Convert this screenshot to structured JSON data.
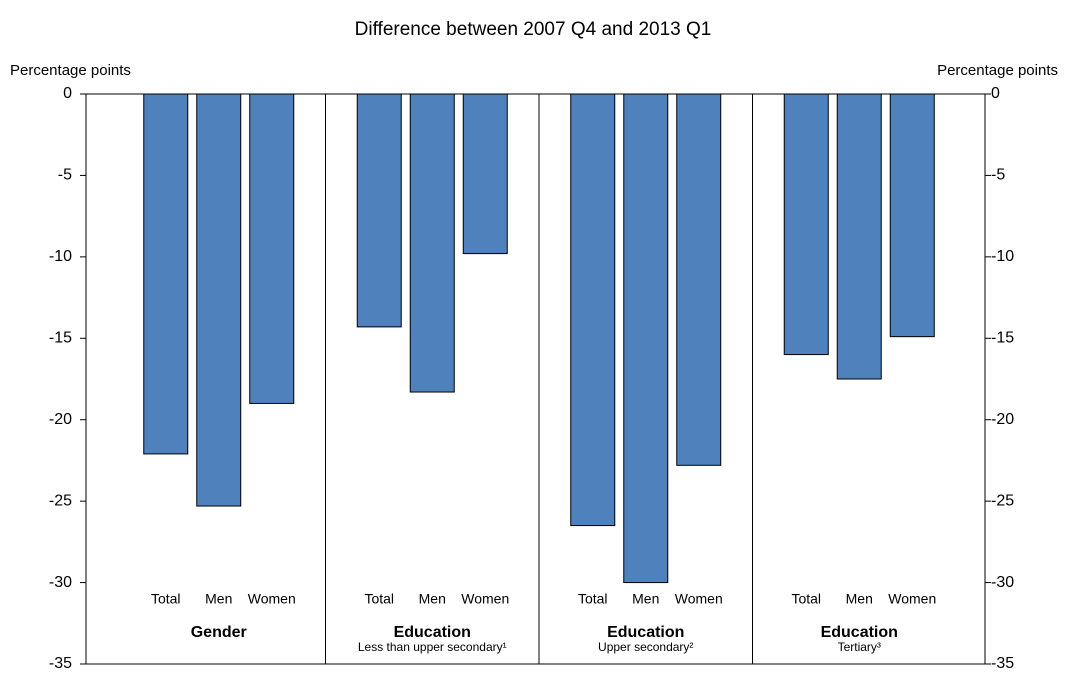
{
  "chart_data": {
    "type": "bar",
    "title": "Difference between 2007 Q4 and 2013 Q1",
    "y_label": "Percentage points",
    "y2_label": "Percentage points",
    "color": "#4f81bd",
    "groups": [
      {
        "label": "Gender",
        "categories": [
          "Total",
          "Men",
          "Women"
        ],
        "values": [
          -22.1,
          -25.3,
          -19.0
        ]
      },
      {
        "label": "Education",
        "sublabel": "Less than upper secondary¹",
        "categories": [
          "Total",
          "Men",
          "Women"
        ],
        "values": [
          -14.3,
          -18.3,
          -9.8
        ]
      },
      {
        "label": "Education",
        "sublabel": "Upper secondary²",
        "categories": [
          "Total",
          "Men",
          "Women"
        ],
        "values": [
          -26.5,
          -30.0,
          -22.8
        ]
      },
      {
        "label": "Education",
        "sublabel": "Tertiary³",
        "categories": [
          "Total",
          "Men",
          "Women"
        ],
        "values": [
          -16.0,
          -17.5,
          -14.9
        ]
      }
    ],
    "ylim": [
      -35,
      0
    ],
    "yticks": [
      0,
      -5,
      -10,
      -15,
      -20,
      -25,
      -30,
      -35
    ],
    "y2lim": [
      -35,
      0
    ],
    "y2ticks": [
      0,
      -5,
      -10,
      -15,
      -20,
      -25,
      -30,
      -35
    ]
  }
}
